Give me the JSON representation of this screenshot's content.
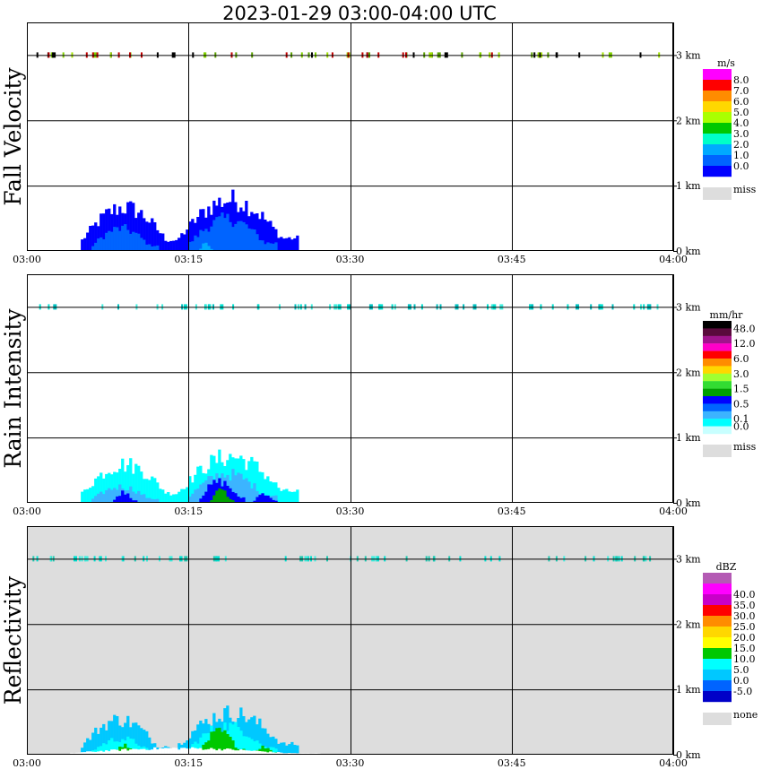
{
  "title": "2023-01-29   03:00-04:00 UTC",
  "chart_data": [
    {
      "type": "heatmap",
      "title": "Fall Velocity",
      "x_ticks": [
        "03:00",
        "03:15",
        "03:30",
        "03:45",
        "04:00"
      ],
      "y_ticks": [
        "0 km",
        "1 km",
        "2 km",
        "3 km"
      ],
      "xlim": [
        "03:00",
        "04:00"
      ],
      "ylim_km": [
        0,
        3.5
      ],
      "grid": true,
      "background": "white",
      "legend": {
        "unit": "m/s",
        "placement": "right",
        "labels": [
          "8.0",
          "7.0",
          "6.0",
          "5.0",
          "4.0",
          "3.0",
          "2.0",
          "1.0",
          "0.0",
          "miss"
        ],
        "colors": [
          "#ff00ff",
          "#ff0000",
          "#ff8c00",
          "#ffd700",
          "#aaff00",
          "#00c800",
          "#00ffc8",
          "#00aaff",
          "#0064ff",
          "#0000ff"
        ],
        "miss_color": "#dddddd"
      },
      "features": [
        {
          "kind": "echo",
          "start": "03:05",
          "end": "03:14",
          "top_km": 0.68,
          "color": "#0000ff"
        },
        {
          "kind": "echo",
          "start": "03:14",
          "end": "03:25",
          "top_km": 0.8,
          "color": "#0000ff"
        },
        {
          "kind": "echo-core",
          "start": "03:06",
          "end": "03:12",
          "top_km": 0.35,
          "color": "#0064ff"
        },
        {
          "kind": "echo-core",
          "start": "03:15",
          "end": "03:23",
          "top_km": 0.5,
          "color": "#0064ff"
        },
        {
          "kind": "echo-core",
          "start": "03:16",
          "end": "03:17",
          "top_km": 0.15,
          "color": "#00aaff"
        }
      ],
      "noise_km": 3.0,
      "noise_colors": [
        "#7fd000",
        "#a0e000",
        "#5aa000",
        "#000000",
        "#c00000"
      ]
    },
    {
      "type": "heatmap",
      "title": "Rain Intensity",
      "x_ticks": [
        "03:00",
        "03:15",
        "03:30",
        "03:45",
        "04:00"
      ],
      "y_ticks": [
        "0 km",
        "1 km",
        "2 km",
        "3 km"
      ],
      "xlim": [
        "03:00",
        "04:00"
      ],
      "ylim_km": [
        0,
        3.5
      ],
      "grid": true,
      "background": "white",
      "legend": {
        "unit": "mm/hr",
        "placement": "right",
        "labels": [
          "48.0",
          "",
          "12.0",
          "",
          "6.0",
          "",
          "3.0",
          "",
          "1.5",
          "",
          "0.5",
          "",
          "0.1",
          "0.0",
          "miss"
        ],
        "colors": [
          "#000000",
          "#5a0a3c",
          "#a0148c",
          "#ff00c8",
          "#ff0000",
          "#ff8c00",
          "#ffd700",
          "#a0ff32",
          "#32dc32",
          "#00a000",
          "#0000ff",
          "#0064ff",
          "#3cb4ff",
          "#00ffff",
          "#c8ffff"
        ],
        "miss_color": "#dddddd"
      },
      "features": [
        {
          "kind": "echo",
          "start": "03:05",
          "end": "03:14",
          "top_km": 0.6,
          "color": "#00ffff"
        },
        {
          "kind": "echo",
          "start": "03:14",
          "end": "03:25",
          "top_km": 0.72,
          "color": "#00ffff"
        },
        {
          "kind": "echo-core",
          "start": "03:06",
          "end": "03:12",
          "top_km": 0.25,
          "color": "#3cb4ff"
        },
        {
          "kind": "echo-core",
          "start": "03:15",
          "end": "03:23",
          "top_km": 0.45,
          "color": "#3cb4ff"
        },
        {
          "kind": "echo-core",
          "start": "03:08",
          "end": "03:10",
          "top_km": 0.17,
          "color": "#0000ff"
        },
        {
          "kind": "echo-core",
          "start": "03:16",
          "end": "03:20",
          "top_km": 0.33,
          "color": "#0000ff"
        },
        {
          "kind": "echo-core",
          "start": "03:21",
          "end": "03:23",
          "top_km": 0.15,
          "color": "#0000ff"
        },
        {
          "kind": "echo-core",
          "start": "03:17",
          "end": "03:19",
          "top_km": 0.2,
          "color": "#00a000"
        }
      ],
      "noise_km": 3.0,
      "noise_colors": [
        "#00e0d0",
        "#40f0e0",
        "#00c0c0"
      ]
    },
    {
      "type": "heatmap",
      "title": "Reflectivity",
      "x_ticks": [
        "03:00",
        "03:15",
        "03:30",
        "03:45",
        "04:00"
      ],
      "y_ticks": [
        "0 km",
        "1 km",
        "2 km",
        "3 km"
      ],
      "xlim": [
        "03:00",
        "04:00"
      ],
      "ylim_km": [
        0,
        3.5
      ],
      "grid": true,
      "background": "#dddddd",
      "legend": {
        "unit": "dBZ",
        "placement": "right",
        "labels": [
          "",
          "40.0",
          "35.0",
          "30.0",
          "25.0",
          "20.0",
          "15.0",
          "10.0",
          "5.0",
          "0.0",
          "-5.0",
          "none"
        ],
        "colors": [
          "#b45ab4",
          "#ff00ff",
          "#c800c8",
          "#ff0000",
          "#ff8c00",
          "#ffd700",
          "#ffff00",
          "#00c800",
          "#00ffff",
          "#00c8ff",
          "#0064ff",
          "#0000c8"
        ],
        "miss_color": "#dddddd"
      },
      "features": [
        {
          "kind": "echo",
          "start": "03:05",
          "end": "03:13",
          "top_km": 0.55,
          "color": "#00c8ff"
        },
        {
          "kind": "echo",
          "start": "03:14",
          "end": "03:25",
          "top_km": 0.65,
          "color": "#00c8ff"
        },
        {
          "kind": "echo-core",
          "start": "03:06",
          "end": "03:12",
          "top_km": 0.25,
          "color": "#00ffff"
        },
        {
          "kind": "echo-core",
          "start": "03:15",
          "end": "03:23",
          "top_km": 0.45,
          "color": "#00ffff"
        },
        {
          "kind": "echo-core",
          "start": "03:08",
          "end": "03:10",
          "top_km": 0.15,
          "color": "#00c800"
        },
        {
          "kind": "echo-core",
          "start": "03:16",
          "end": "03:20",
          "top_km": 0.35,
          "color": "#00c800"
        },
        {
          "kind": "echo-core",
          "start": "03:21",
          "end": "03:23",
          "top_km": 0.12,
          "color": "#00c800"
        },
        {
          "kind": "edge",
          "start": "03:04",
          "end": "03:27",
          "top_km": 0.1,
          "color": "#ffffff"
        }
      ],
      "noise_km": 3.0,
      "noise_colors": [
        "#00e0d0",
        "#40f0e0",
        "#20c8b0"
      ]
    }
  ]
}
